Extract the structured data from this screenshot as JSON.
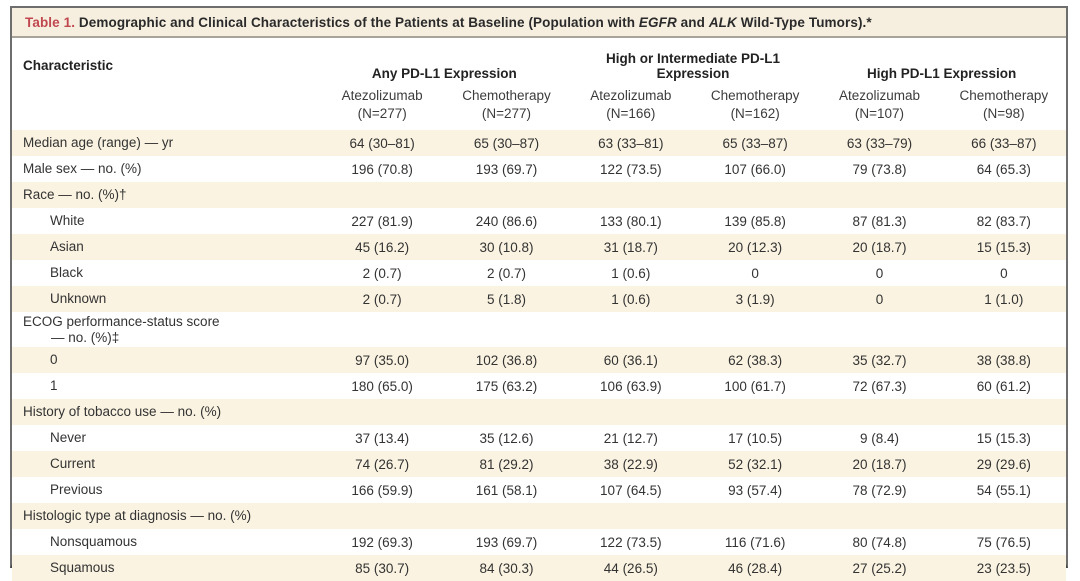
{
  "colors": {
    "accent_red": "#c1474f",
    "row_shade": "#faf3e1",
    "title_bg": "#f6efe0",
    "border": "#6e6e6e"
  },
  "title": {
    "label": "Table 1.",
    "part1": " Demographic and Clinical Characteristics of the Patients at Baseline (Population with ",
    "italic1": "EGFR",
    "part2": " and ",
    "italic2": "ALK",
    "part3": " Wild-Type Tumors).*"
  },
  "header": {
    "characteristic": "Characteristic",
    "groups": [
      {
        "label": "Any PD-L1 Expression"
      },
      {
        "label": "High or Intermediate PD-L1 Expression"
      },
      {
        "label": "High PD-L1 Expression"
      }
    ],
    "columns": [
      {
        "drug": "Atezolizumab",
        "n": "(N=277)"
      },
      {
        "drug": "Chemotherapy",
        "n": "(N=277)"
      },
      {
        "drug": "Atezolizumab",
        "n": "(N=166)"
      },
      {
        "drug": "Chemotherapy",
        "n": "(N=162)"
      },
      {
        "drug": "Atezolizumab",
        "n": "(N=107)"
      },
      {
        "drug": "Chemotherapy",
        "n": "(N=98)"
      }
    ]
  },
  "rows": [
    {
      "label": "Median age (range) — yr",
      "indent": 0,
      "shaded": true,
      "values": [
        "64 (30–81)",
        "65 (30–87)",
        "63 (33–81)",
        "65 (33–87)",
        "63 (33–79)",
        "66 (33–87)"
      ]
    },
    {
      "label": "Male sex — no. (%)",
      "indent": 0,
      "shaded": false,
      "values": [
        "196 (70.8)",
        "193 (69.7)",
        "122 (73.5)",
        "107 (66.0)",
        "79 (73.8)",
        "64 (65.3)"
      ]
    },
    {
      "label": "Race — no. (%)†",
      "indent": 0,
      "shaded": true,
      "values": [
        "",
        "",
        "",
        "",
        "",
        ""
      ]
    },
    {
      "label": "White",
      "indent": 1,
      "shaded": false,
      "values": [
        "227 (81.9)",
        "240 (86.6)",
        "133 (80.1)",
        "139 (85.8)",
        "87 (81.3)",
        "82 (83.7)"
      ]
    },
    {
      "label": "Asian",
      "indent": 1,
      "shaded": true,
      "values": [
        "45 (16.2)",
        "30 (10.8)",
        "31 (18.7)",
        "20 (12.3)",
        "20 (18.7)",
        "15 (15.3)"
      ]
    },
    {
      "label": "Black",
      "indent": 1,
      "shaded": false,
      "values": [
        "2 (0.7)",
        "2 (0.7)",
        "1 (0.6)",
        "0",
        "0",
        "0"
      ]
    },
    {
      "label": "Unknown",
      "indent": 1,
      "shaded": true,
      "values": [
        "2 (0.7)",
        "5 (1.8)",
        "1 (0.6)",
        "3 (1.9)",
        "0",
        "1 (1.0)"
      ]
    },
    {
      "label": "ECOG performance-status score",
      "label_line2": "— no. (%)‡",
      "indent": 0,
      "shaded": false,
      "values": [
        "",
        "",
        "",
        "",
        "",
        ""
      ]
    },
    {
      "label": "0",
      "indent": 1,
      "shaded": true,
      "values": [
        "97 (35.0)",
        "102 (36.8)",
        "60 (36.1)",
        "62 (38.3)",
        "35 (32.7)",
        "38 (38.8)"
      ]
    },
    {
      "label": "1",
      "indent": 1,
      "shaded": false,
      "values": [
        "180 (65.0)",
        "175 (63.2)",
        "106 (63.9)",
        "100 (61.7)",
        "72 (67.3)",
        "60 (61.2)"
      ]
    },
    {
      "label": "History of tobacco use — no. (%)",
      "indent": 0,
      "shaded": true,
      "values": [
        "",
        "",
        "",
        "",
        "",
        ""
      ]
    },
    {
      "label": "Never",
      "indent": 1,
      "shaded": false,
      "values": [
        "37 (13.4)",
        "35 (12.6)",
        "21 (12.7)",
        "17 (10.5)",
        "9 (8.4)",
        "15 (15.3)"
      ]
    },
    {
      "label": "Current",
      "indent": 1,
      "shaded": true,
      "values": [
        "74 (26.7)",
        "81 (29.2)",
        "38 (22.9)",
        "52 (32.1)",
        "20 (18.7)",
        "29 (29.6)"
      ]
    },
    {
      "label": "Previous",
      "indent": 1,
      "shaded": false,
      "values": [
        "166 (59.9)",
        "161 (58.1)",
        "107 (64.5)",
        "93 (57.4)",
        "78 (72.9)",
        "54 (55.1)"
      ]
    },
    {
      "label": "Histologic type at diagnosis — no. (%)",
      "indent": 0,
      "shaded": true,
      "values": [
        "",
        "",
        "",
        "",
        "",
        ""
      ]
    },
    {
      "label": "Nonsquamous",
      "indent": 1,
      "shaded": false,
      "values": [
        "192 (69.3)",
        "193 (69.7)",
        "122 (73.5)",
        "116 (71.6)",
        "80 (74.8)",
        "75 (76.5)"
      ]
    },
    {
      "label": "Squamous",
      "indent": 1,
      "shaded": true,
      "values": [
        "85 (30.7)",
        "84 (30.3)",
        "44 (26.5)",
        "46 (28.4)",
        "27 (25.2)",
        "23 (23.5)"
      ]
    }
  ]
}
